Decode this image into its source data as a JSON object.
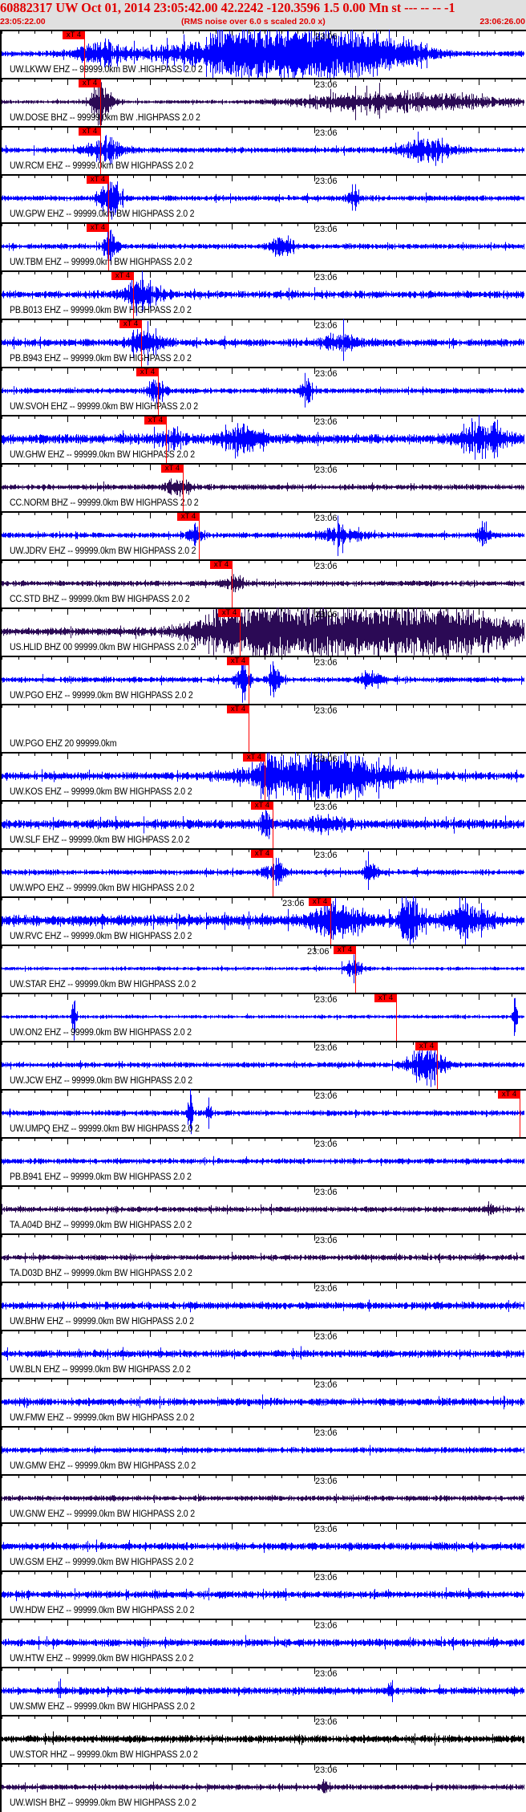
{
  "header": {
    "title": "60882317 UW Oct 01, 2014 23:05:42.00    42.2242 -120.3596  1.5 0.00 Mn st --- -- --  -1",
    "start_time": "23:05:22.00",
    "note": "(RMS noise over 6.0 s scaled 20.0 x)",
    "end_time": "23:06:26.00"
  },
  "time_axis": {
    "start": "23:05:22.00",
    "end": "23:06:26.00",
    "minute_label": "23:06"
  },
  "pick_label": "xT 4",
  "colors": {
    "pick": "#ff0000",
    "trace_blue": "#0000ff",
    "trace_dark": "#2b0a55",
    "trace_black": "#000000",
    "header_bg": "#e0e0e0",
    "header_text": "#e00000"
  },
  "channels": [
    {
      "label": "UW.LKWW EHZ -- 99999.0km BW .HIGHPASS  2.0  2",
      "pick": "23:05:32.0",
      "color": "blue"
    },
    {
      "label": "UW.DOSE BHZ -- 99999.0km BW .HIGHPASS  2.0  2",
      "pick": "23:05:34.0",
      "color": "dark"
    },
    {
      "label": "UW.RCM EHZ -- 99999.0km BW  HIGHPASS  2.0  2",
      "pick": "23:05:34.0",
      "color": "blue"
    },
    {
      "label": "UW.GPW EHZ -- 99999.0km BW  HIGHPASS  2.0  2",
      "pick": "23:05:35.0",
      "color": "blue"
    },
    {
      "label": "UW.TBM EHZ -- 99999.0km BW  HIGHPASS  2.0  2",
      "pick": "23:05:35.0",
      "color": "blue"
    },
    {
      "label": "PB.B013 EHZ -- 99999.0km BW  HIGHPASS  2.0  2",
      "pick": "23:05:38.0",
      "color": "blue"
    },
    {
      "label": "PB.B943 EHZ -- 99999.0km BW  HIGHPASS  2.0  2",
      "pick": "23:05:39.0",
      "color": "blue"
    },
    {
      "label": "UW.SVOH EHZ -- 99999.0km BW  HIGHPASS  2.0  2",
      "pick": "23:05:41.0",
      "color": "blue"
    },
    {
      "label": "UW.GHW EHZ -- 99999.0km BW  HIGHPASS  2.0  2",
      "pick": "23:05:42.0",
      "color": "blue"
    },
    {
      "label": "CC.NORM BHZ -- 99999.0km BW  HIGHPASS  2.0  2",
      "pick": "23:05:44.0",
      "color": "dark"
    },
    {
      "label": "UW.JDRV EHZ -- 99999.0km BW  HIGHPASS  2.0  2",
      "pick": "23:05:46.0",
      "color": "blue"
    },
    {
      "label": "CC.STD BHZ -- 99999.0km BW  HIGHPASS  2.0  2",
      "pick": "23:05:50.0",
      "color": "dark"
    },
    {
      "label": "US.HLID BHZ 00 99999.0km BW  HIGHPASS  2.0  2",
      "pick": "23:05:51.0",
      "color": "dark"
    },
    {
      "label": "UW.PGO EHZ -- 99999.0km BW  HIGHPASS  2.0  2",
      "pick": "23:05:52.0",
      "color": "blue"
    },
    {
      "label": "UW.PGO EHZ 20 99999.0km",
      "pick": "23:05:52.0",
      "color": "none"
    },
    {
      "label": "UW.KOS EHZ -- 99999.0km BW  HIGHPASS  2.0  2",
      "pick": "23:05:54.0",
      "color": "blue"
    },
    {
      "label": "UW.SLF EHZ -- 99999.0km BW  HIGHPASS  2.0  2",
      "pick": "23:05:55.0",
      "color": "blue"
    },
    {
      "label": "UW.WPO EHZ -- 99999.0km BW  HIGHPASS  2.0  2",
      "pick": "23:05:55.0",
      "color": "blue"
    },
    {
      "label": "UW.RVC EHZ -- 99999.0km BW  HIGHPASS  2.0  2",
      "pick": "23:06:02.0",
      "color": "blue"
    },
    {
      "label": "UW.STAR EHZ -- 99999.0km BW  HIGHPASS  2.0  2",
      "pick": "23:06:05.0",
      "color": "blue"
    },
    {
      "label": "UW.ON2 EHZ -- 99999.0km BW  HIGHPASS  2.0  2",
      "pick": "23:06:10.0",
      "color": "blue"
    },
    {
      "label": "UW.JCW EHZ -- 99999.0km BW  HIGHPASS  2.0  2",
      "pick": "23:06:15.0",
      "color": "blue"
    },
    {
      "label": "UW.UMPQ EHZ -- 99999.0km BW  HIGHPASS  2.0  2",
      "pick": "23:06:25.0",
      "color": "blue"
    },
    {
      "label": "PB.B941 EHZ -- 99999.0km BW  HIGHPASS  2.0  2",
      "pick": null,
      "color": "blue"
    },
    {
      "label": "TA.A04D BHZ -- 99999.0km BW  HIGHPASS  2.0  2",
      "pick": null,
      "color": "dark"
    },
    {
      "label": "TA.D03D BHZ -- 99999.0km BW  HIGHPASS  2.0  2",
      "pick": null,
      "color": "dark"
    },
    {
      "label": "UW.BHW EHZ -- 99999.0km BW  HIGHPASS  2.0  2",
      "pick": null,
      "color": "blue"
    },
    {
      "label": "UW.BLN EHZ -- 99999.0km BW  HIGHPASS  2.0  2",
      "pick": null,
      "color": "blue"
    },
    {
      "label": "UW.FMW EHZ -- 99999.0km BW  HIGHPASS  2.0  2",
      "pick": null,
      "color": "blue"
    },
    {
      "label": "UW.GMW EHZ -- 99999.0km BW  HIGHPASS  2.0  2",
      "pick": null,
      "color": "blue"
    },
    {
      "label": "UW.GNW EHZ -- 99999.0km BW  HIGHPASS  2.0  2",
      "pick": null,
      "color": "dark"
    },
    {
      "label": "UW.GSM EHZ -- 99999.0km BW  HIGHPASS  2.0  2",
      "pick": null,
      "color": "blue"
    },
    {
      "label": "UW.HDW EHZ -- 99999.0km BW  HIGHPASS  2.0  2",
      "pick": null,
      "color": "blue"
    },
    {
      "label": "UW.HTW EHZ -- 99999.0km BW  HIGHPASS  2.0  2",
      "pick": null,
      "color": "blue"
    },
    {
      "label": "UW.SMW EHZ -- 99999.0km BW  HIGHPASS  2.0  2",
      "pick": null,
      "color": "blue"
    },
    {
      "label": "UW.STOR HHZ -- 99999.0km BW  HIGHPASS  2.0  2",
      "pick": null,
      "color": "black"
    },
    {
      "label": "UW.WISH BHZ -- 99999.0km BW  HIGHPASS  2.0  2",
      "pick": null,
      "color": "dark"
    }
  ]
}
